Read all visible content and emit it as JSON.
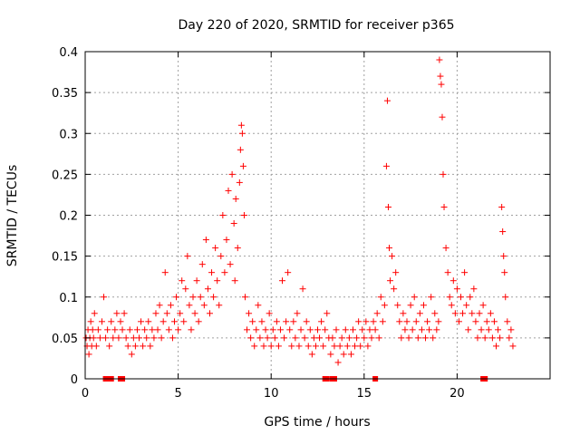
{
  "chart_data": {
    "type": "scatter",
    "title": "Day 220 of 2020, SRMTID for receiver p365",
    "xlabel": "GPS time / hours",
    "ylabel": "SRMTID / TECUs",
    "xlim": [
      0,
      25
    ],
    "ylim": [
      0,
      0.4
    ],
    "xticks": [
      0,
      5,
      10,
      15,
      20
    ],
    "yticks": [
      0,
      0.05,
      0.1,
      0.15,
      0.2,
      0.25,
      0.3,
      0.35,
      0.4
    ],
    "xtick_labels": [
      "0",
      "5",
      "10",
      "15",
      "20"
    ],
    "ytick_labels": [
      "0",
      "0.05",
      "0.1",
      "0.15",
      "0.2",
      "0.25",
      "0.3",
      "0.35",
      "0.4"
    ],
    "grid": true,
    "legend": "none",
    "marker": "plus",
    "color": "#ff0000",
    "series": [
      {
        "name": "SRMTID",
        "points": [
          [
            0.05,
            0.05
          ],
          [
            0.1,
            0.04
          ],
          [
            0.15,
            0.06
          ],
          [
            0.2,
            0.03
          ],
          [
            0.25,
            0.05
          ],
          [
            0.3,
            0.07
          ],
          [
            0.35,
            0.04
          ],
          [
            0.4,
            0.06
          ],
          [
            0.45,
            0.05
          ],
          [
            0.5,
            0.08
          ],
          [
            0.6,
            0.04
          ],
          [
            0.7,
            0.06
          ],
          [
            0.8,
            0.05
          ],
          [
            0.9,
            0.07
          ],
          [
            1.0,
            0.1
          ],
          [
            1.1,
            0.05
          ],
          [
            1.2,
            0.06
          ],
          [
            1.3,
            0.04
          ],
          [
            1.4,
            0.07
          ],
          [
            1.5,
            0.05
          ],
          [
            1.6,
            0.06
          ],
          [
            1.7,
            0.08
          ],
          [
            1.8,
            0.05
          ],
          [
            1.9,
            0.07
          ],
          [
            2.0,
            0.06
          ],
          [
            2.1,
            0.08
          ],
          [
            2.2,
            0.05
          ],
          [
            2.3,
            0.04
          ],
          [
            2.4,
            0.06
          ],
          [
            2.5,
            0.03
          ],
          [
            2.6,
            0.05
          ],
          [
            2.7,
            0.04
          ],
          [
            2.8,
            0.06
          ],
          [
            2.9,
            0.05
          ],
          [
            3.0,
            0.07
          ],
          [
            3.1,
            0.04
          ],
          [
            3.2,
            0.06
          ],
          [
            3.3,
            0.05
          ],
          [
            3.4,
            0.07
          ],
          [
            3.5,
            0.04
          ],
          [
            3.6,
            0.06
          ],
          [
            3.7,
            0.05
          ],
          [
            3.8,
            0.08
          ],
          [
            3.9,
            0.06
          ],
          [
            4.0,
            0.09
          ],
          [
            4.1,
            0.05
          ],
          [
            4.2,
            0.07
          ],
          [
            4.3,
            0.13
          ],
          [
            4.4,
            0.08
          ],
          [
            4.5,
            0.06
          ],
          [
            4.6,
            0.09
          ],
          [
            4.7,
            0.05
          ],
          [
            4.8,
            0.07
          ],
          [
            4.9,
            0.1
          ],
          [
            5.0,
            0.06
          ],
          [
            5.1,
            0.08
          ],
          [
            5.2,
            0.12
          ],
          [
            5.3,
            0.07
          ],
          [
            5.4,
            0.11
          ],
          [
            5.5,
            0.15
          ],
          [
            5.6,
            0.09
          ],
          [
            5.7,
            0.06
          ],
          [
            5.8,
            0.1
          ],
          [
            5.9,
            0.08
          ],
          [
            6.0,
            0.12
          ],
          [
            6.1,
            0.07
          ],
          [
            6.2,
            0.1
          ],
          [
            6.3,
            0.14
          ],
          [
            6.4,
            0.09
          ],
          [
            6.5,
            0.17
          ],
          [
            6.6,
            0.11
          ],
          [
            6.7,
            0.08
          ],
          [
            6.8,
            0.13
          ],
          [
            6.9,
            0.1
          ],
          [
            7.0,
            0.16
          ],
          [
            7.1,
            0.12
          ],
          [
            7.2,
            0.09
          ],
          [
            7.3,
            0.15
          ],
          [
            7.4,
            0.2
          ],
          [
            7.5,
            0.13
          ],
          [
            7.6,
            0.17
          ],
          [
            7.7,
            0.23
          ],
          [
            7.8,
            0.14
          ],
          [
            7.9,
            0.25
          ],
          [
            8.0,
            0.19
          ],
          [
            8.05,
            0.12
          ],
          [
            8.1,
            0.22
          ],
          [
            8.2,
            0.16
          ],
          [
            8.3,
            0.24
          ],
          [
            8.35,
            0.28
          ],
          [
            8.4,
            0.31
          ],
          [
            8.45,
            0.3
          ],
          [
            8.5,
            0.26
          ],
          [
            8.55,
            0.2
          ],
          [
            8.6,
            0.1
          ],
          [
            8.7,
            0.06
          ],
          [
            8.8,
            0.08
          ],
          [
            8.9,
            0.05
          ],
          [
            9.0,
            0.07
          ],
          [
            9.1,
            0.04
          ],
          [
            9.2,
            0.06
          ],
          [
            9.3,
            0.09
          ],
          [
            9.4,
            0.05
          ],
          [
            9.5,
            0.07
          ],
          [
            9.6,
            0.04
          ],
          [
            9.7,
            0.06
          ],
          [
            9.8,
            0.05
          ],
          [
            9.9,
            0.08
          ],
          [
            10.0,
            0.04
          ],
          [
            10.1,
            0.06
          ],
          [
            10.2,
            0.05
          ],
          [
            10.3,
            0.07
          ],
          [
            10.4,
            0.04
          ],
          [
            10.5,
            0.06
          ],
          [
            10.6,
            0.12
          ],
          [
            10.7,
            0.05
          ],
          [
            10.8,
            0.07
          ],
          [
            10.9,
            0.13
          ],
          [
            11.0,
            0.06
          ],
          [
            11.1,
            0.04
          ],
          [
            11.2,
            0.07
          ],
          [
            11.3,
            0.05
          ],
          [
            11.4,
            0.08
          ],
          [
            11.5,
            0.04
          ],
          [
            11.6,
            0.06
          ],
          [
            11.7,
            0.11
          ],
          [
            11.8,
            0.05
          ],
          [
            11.9,
            0.07
          ],
          [
            12.0,
            0.04
          ],
          [
            12.1,
            0.06
          ],
          [
            12.2,
            0.03
          ],
          [
            12.3,
            0.05
          ],
          [
            12.4,
            0.04
          ],
          [
            12.5,
            0.06
          ],
          [
            12.6,
            0.05
          ],
          [
            12.7,
            0.07
          ],
          [
            12.8,
            0.04
          ],
          [
            12.9,
            0.06
          ],
          [
            13.0,
            0.08
          ],
          [
            13.1,
            0.05
          ],
          [
            13.2,
            0.03
          ],
          [
            13.3,
            0.05
          ],
          [
            13.4,
            0.04
          ],
          [
            13.5,
            0.06
          ],
          [
            13.6,
            0.02
          ],
          [
            13.7,
            0.04
          ],
          [
            13.8,
            0.05
          ],
          [
            13.9,
            0.03
          ],
          [
            14.0,
            0.06
          ],
          [
            14.1,
            0.04
          ],
          [
            14.2,
            0.05
          ],
          [
            14.3,
            0.03
          ],
          [
            14.4,
            0.06
          ],
          [
            14.5,
            0.04
          ],
          [
            14.6,
            0.05
          ],
          [
            14.7,
            0.07
          ],
          [
            14.8,
            0.04
          ],
          [
            14.9,
            0.06
          ],
          [
            15.0,
            0.05
          ],
          [
            15.1,
            0.07
          ],
          [
            15.2,
            0.04
          ],
          [
            15.3,
            0.06
          ],
          [
            15.4,
            0.05
          ],
          [
            15.5,
            0.07
          ],
          [
            15.6,
            0.06
          ],
          [
            15.7,
            0.08
          ],
          [
            15.8,
            0.05
          ],
          [
            15.9,
            0.1
          ],
          [
            16.0,
            0.07
          ],
          [
            16.1,
            0.09
          ],
          [
            16.2,
            0.26
          ],
          [
            16.25,
            0.34
          ],
          [
            16.3,
            0.21
          ],
          [
            16.35,
            0.16
          ],
          [
            16.4,
            0.12
          ],
          [
            16.5,
            0.15
          ],
          [
            16.6,
            0.11
          ],
          [
            16.7,
            0.13
          ],
          [
            16.8,
            0.09
          ],
          [
            16.9,
            0.07
          ],
          [
            17.0,
            0.05
          ],
          [
            17.1,
            0.08
          ],
          [
            17.2,
            0.06
          ],
          [
            17.3,
            0.07
          ],
          [
            17.4,
            0.05
          ],
          [
            17.5,
            0.09
          ],
          [
            17.6,
            0.06
          ],
          [
            17.7,
            0.1
          ],
          [
            17.8,
            0.07
          ],
          [
            17.9,
            0.05
          ],
          [
            18.0,
            0.08
          ],
          [
            18.1,
            0.06
          ],
          [
            18.2,
            0.09
          ],
          [
            18.3,
            0.05
          ],
          [
            18.4,
            0.07
          ],
          [
            18.5,
            0.06
          ],
          [
            18.6,
            0.1
          ],
          [
            18.7,
            0.05
          ],
          [
            18.8,
            0.08
          ],
          [
            18.9,
            0.06
          ],
          [
            19.0,
            0.07
          ],
          [
            19.05,
            0.39
          ],
          [
            19.1,
            0.37
          ],
          [
            19.15,
            0.36
          ],
          [
            19.2,
            0.32
          ],
          [
            19.25,
            0.25
          ],
          [
            19.3,
            0.21
          ],
          [
            19.4,
            0.16
          ],
          [
            19.5,
            0.13
          ],
          [
            19.6,
            0.1
          ],
          [
            19.7,
            0.09
          ],
          [
            19.8,
            0.12
          ],
          [
            19.9,
            0.08
          ],
          [
            20.0,
            0.11
          ],
          [
            20.1,
            0.07
          ],
          [
            20.2,
            0.1
          ],
          [
            20.3,
            0.08
          ],
          [
            20.4,
            0.13
          ],
          [
            20.5,
            0.09
          ],
          [
            20.6,
            0.06
          ],
          [
            20.7,
            0.1
          ],
          [
            20.8,
            0.08
          ],
          [
            20.9,
            0.11
          ],
          [
            21.0,
            0.07
          ],
          [
            21.1,
            0.05
          ],
          [
            21.2,
            0.08
          ],
          [
            21.3,
            0.06
          ],
          [
            21.4,
            0.09
          ],
          [
            21.5,
            0.05
          ],
          [
            21.6,
            0.07
          ],
          [
            21.7,
            0.06
          ],
          [
            21.8,
            0.08
          ],
          [
            21.9,
            0.05
          ],
          [
            22.0,
            0.07
          ],
          [
            22.1,
            0.04
          ],
          [
            22.2,
            0.06
          ],
          [
            22.3,
            0.05
          ],
          [
            22.4,
            0.21
          ],
          [
            22.45,
            0.18
          ],
          [
            22.5,
            0.15
          ],
          [
            22.55,
            0.13
          ],
          [
            22.6,
            0.1
          ],
          [
            22.7,
            0.07
          ],
          [
            22.8,
            0.05
          ],
          [
            22.9,
            0.06
          ],
          [
            23.0,
            0.04
          ]
        ],
        "zero_markers": [
          1.1,
          1.3,
          1.4,
          1.9,
          2.0,
          12.9,
          13.0,
          13.3,
          13.4,
          15.6,
          21.4,
          21.5
        ]
      }
    ]
  }
}
